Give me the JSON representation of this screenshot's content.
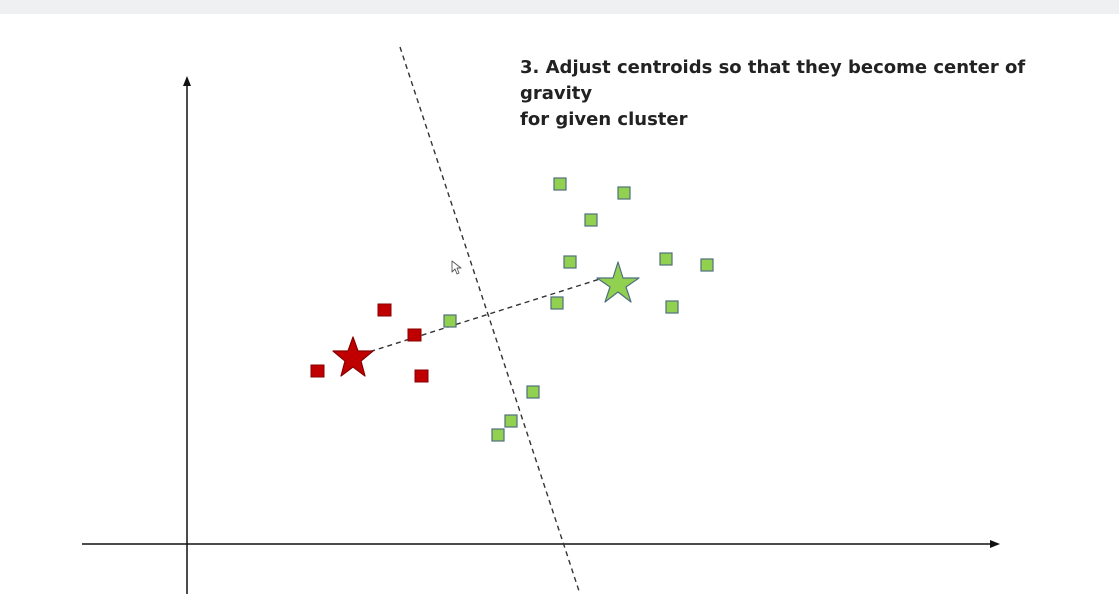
{
  "slide": {
    "caption_line1": "3. Adjust centroids so that they become center of gravity",
    "caption_line2": "for given cluster"
  },
  "colors": {
    "axis": "#111111",
    "red_fill": "#c00000",
    "red_stroke": "#8a0000",
    "green_fill": "#92d050",
    "green_stroke": "#4f6f7f",
    "dashed": "#333333"
  },
  "icons": {
    "cursor": "mouse-pointer-icon"
  }
}
